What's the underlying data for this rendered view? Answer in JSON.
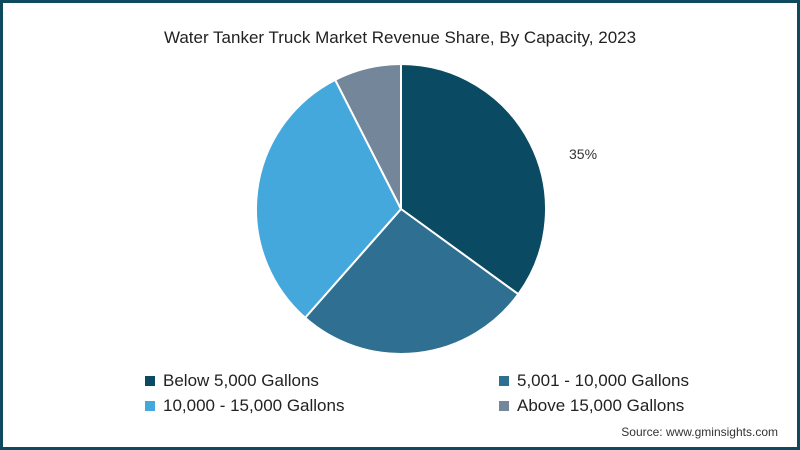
{
  "chart_data": {
    "type": "pie",
    "title": "Water Tanker Truck Market Revenue Share, By Capacity, 2023",
    "categories": [
      "Below 5,000 Gallons",
      "5,001 - 10,000 Gallons",
      "10,000 - 15,000 Gallons",
      "Above 15,000 Gallons"
    ],
    "values": [
      35,
      26.5,
      31,
      7.5
    ],
    "colors": [
      "#0b4a63",
      "#2f6f91",
      "#45a8dc",
      "#73869a"
    ],
    "annotations": [
      {
        "slice": "Below 5,000 Gallons",
        "text": "35%"
      }
    ],
    "legend_position": "bottom"
  },
  "title": "Water Tanker Truck Market Revenue Share, By Capacity, 2023",
  "data_label": "35%",
  "legend": [
    {
      "label": "Below 5,000 Gallons",
      "color": "#0b4a63"
    },
    {
      "label": "5,001 - 10,000 Gallons",
      "color": "#2f6f91"
    },
    {
      "label": "10,000 - 15,000 Gallons",
      "color": "#45a8dc"
    },
    {
      "label": "Above 15,000 Gallons",
      "color": "#73869a"
    }
  ],
  "source": "Source: www.gminsights.com"
}
